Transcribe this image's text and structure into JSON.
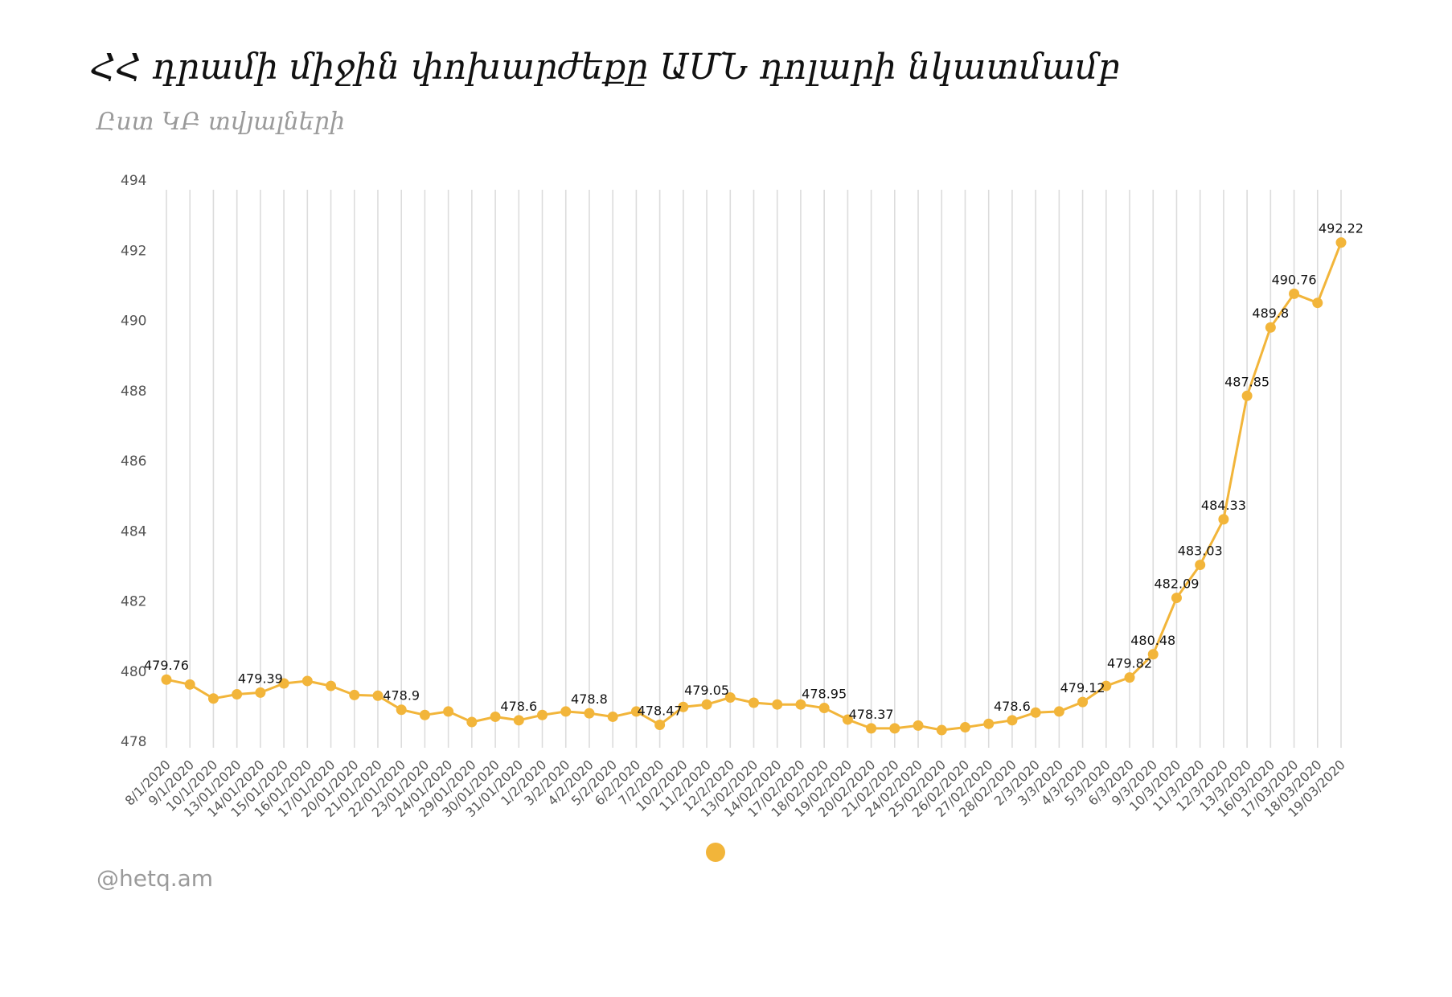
{
  "header": {
    "title": "ՀՀ դրամի միջին փոխարժեքը ԱՄՆ դոլարի նկատմամբ",
    "subtitle": "Ըստ ԿԲ տվյալների"
  },
  "footer": {
    "source": "@hetq.am"
  },
  "colors": {
    "series": "#f2b53a",
    "grid": "#dcdcdc"
  },
  "chart_data": {
    "type": "line",
    "title": "ՀՀ դրամի միջին փոխարժեքը ԱՄՆ դոլարի նկատմամբ",
    "subtitle": "Ըստ ԿԲ տվյալների",
    "xlabel": "",
    "ylabel": "",
    "ylim": [
      478,
      494
    ],
    "yticks": [
      478,
      480,
      482,
      484,
      486,
      488,
      490,
      492,
      494
    ],
    "grid": "vertical",
    "legend": "bottom-center",
    "categories": [
      "8/1/2020",
      "9/1/2020",
      "10/1/2020",
      "13/01/2020",
      "14/01/2020",
      "15/01/2020",
      "16/01/2020",
      "17/01/2020",
      "20/01/2020",
      "21/01/2020",
      "22/01/2020",
      "23/01/2020",
      "24/01/2020",
      "29/01/2020",
      "30/01/2020",
      "31/01/2020",
      "1/2/2020",
      "3/2/2020",
      "4/2/2020",
      "5/2/2020",
      "6/2/2020",
      "7/2/2020",
      "10/2/2020",
      "11/2/2020",
      "12/2/2020",
      "13/02/2020",
      "14/02/2020",
      "17/02/2020",
      "18/02/2020",
      "19/02/2020",
      "20/02/2020",
      "21/02/2020",
      "24/02/2020",
      "25/02/2020",
      "26/02/2020",
      "27/02/2020",
      "28/02/2020",
      "2/3/2020",
      "3/3/2020",
      "4/3/2020",
      "5/3/2020",
      "6/3/2020",
      "9/3/2020",
      "10/3/2020",
      "11/3/2020",
      "12/3/2020",
      "13/3/2020",
      "16/03/2020",
      "17/03/2020",
      "18/03/2020",
      "19/03/2020"
    ],
    "series": [
      {
        "values": [
          479.76,
          479.62,
          479.22,
          479.34,
          479.39,
          479.65,
          479.72,
          479.58,
          479.32,
          479.3,
          478.9,
          478.75,
          478.85,
          478.55,
          478.7,
          478.6,
          478.75,
          478.85,
          478.8,
          478.7,
          478.85,
          478.47,
          478.98,
          479.05,
          479.25,
          479.1,
          479.05,
          479.05,
          478.95,
          478.62,
          478.37,
          478.37,
          478.45,
          478.32,
          478.4,
          478.5,
          478.6,
          478.82,
          478.85,
          479.12,
          479.58,
          479.82,
          480.48,
          482.09,
          483.03,
          484.33,
          487.85,
          489.8,
          490.76,
          490.5,
          492.22
        ],
        "labels": [
          {
            "index": 0,
            "text": "479.76"
          },
          {
            "index": 4,
            "text": "479.39"
          },
          {
            "index": 10,
            "text": "478.9"
          },
          {
            "index": 15,
            "text": "478.6"
          },
          {
            "index": 18,
            "text": "478.8"
          },
          {
            "index": 21,
            "text": "478.47"
          },
          {
            "index": 23,
            "text": "479.05"
          },
          {
            "index": 28,
            "text": "478.95"
          },
          {
            "index": 30,
            "text": "478.37"
          },
          {
            "index": 36,
            "text": "478.6"
          },
          {
            "index": 39,
            "text": "479.12"
          },
          {
            "index": 41,
            "text": "479.82"
          },
          {
            "index": 42,
            "text": "480.48"
          },
          {
            "index": 43,
            "text": "482.09"
          },
          {
            "index": 44,
            "text": "483.03"
          },
          {
            "index": 45,
            "text": "484.33"
          },
          {
            "index": 46,
            "text": "487.85"
          },
          {
            "index": 47,
            "text": "489.8"
          },
          {
            "index": 48,
            "text": "490.76"
          },
          {
            "index": 50,
            "text": "492.22"
          }
        ]
      }
    ]
  }
}
